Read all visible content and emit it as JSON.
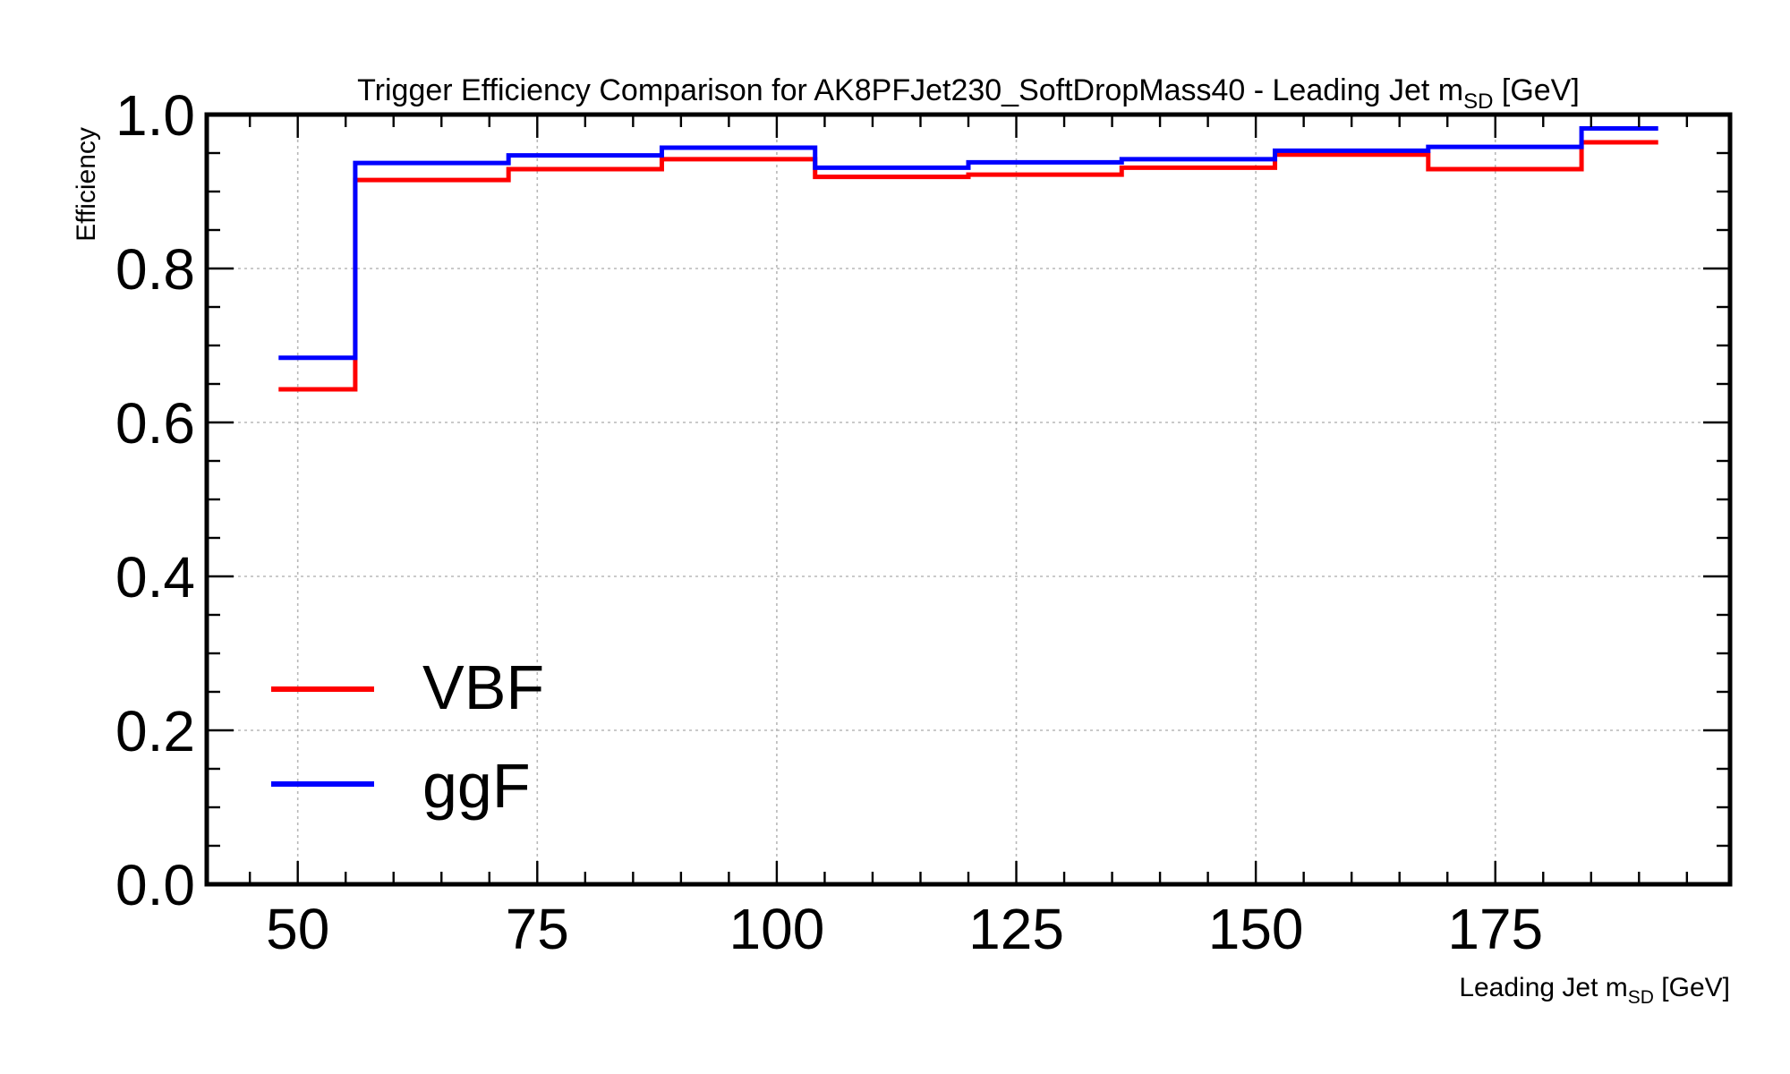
{
  "chart_data": {
    "type": "line",
    "drawstyle": "step",
    "title": "Trigger Efficiency Comparison for AK8PFJet230_SoftDropMass40 - Leading Jet m",
    "title_subscript": "SD",
    "title_suffix": " [GeV]",
    "xlabel": "Leading Jet m",
    "xlabel_subscript": "SD",
    "xlabel_suffix": " [GeV]",
    "ylabel": "Efficiency",
    "xlim": [
      40.5,
      199.5
    ],
    "ylim": [
      0.0,
      1.0
    ],
    "xticks": [
      50,
      75,
      100,
      125,
      150,
      175
    ],
    "yticks": [
      0.0,
      0.2,
      0.4,
      0.6,
      0.8,
      1.0
    ],
    "xtick_labels": [
      "50",
      "75",
      "100",
      "125",
      "150",
      "175"
    ],
    "ytick_labels": [
      "0.0",
      "0.2",
      "0.4",
      "0.6",
      "0.8",
      "1.0"
    ],
    "grid": true,
    "legend_position": "lower-left",
    "bin_edges": [
      48,
      56,
      72,
      88,
      104,
      120,
      136,
      152,
      168,
      184,
      192
    ],
    "series": [
      {
        "name": "VBF",
        "color": "#ff0000",
        "values": [
          0.643,
          0.915,
          0.929,
          0.942,
          0.919,
          0.922,
          0.931,
          0.948,
          0.929,
          0.964
        ]
      },
      {
        "name": "ggF",
        "color": "#0000ff",
        "values": [
          0.684,
          0.937,
          0.947,
          0.957,
          0.931,
          0.938,
          0.942,
          0.953,
          0.958,
          0.982
        ]
      }
    ]
  }
}
